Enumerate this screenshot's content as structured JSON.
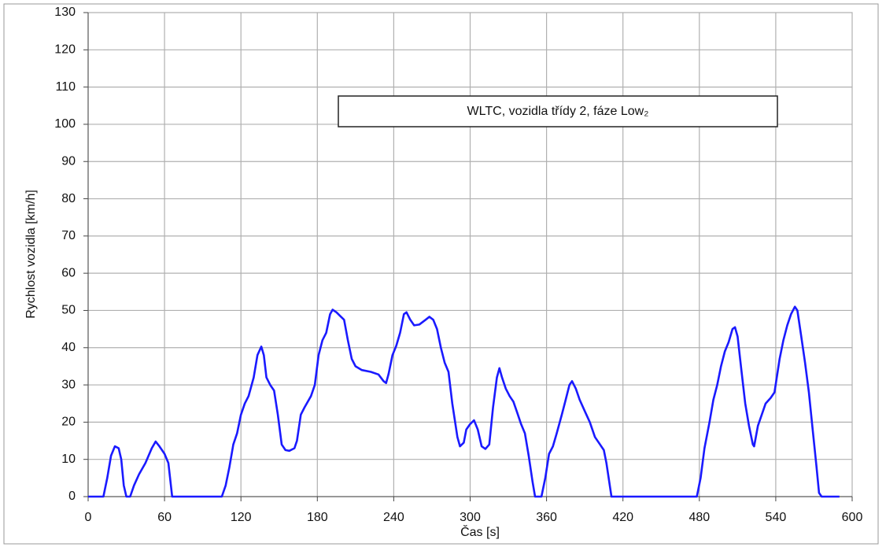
{
  "chart_data": {
    "type": "line",
    "annotation": "WLTC, vozidla třídy 2, fáze Low₂",
    "xlabel": "Čas [s]",
    "ylabel": "Rychlost vozidla [km/h]",
    "color": "#1a1aff",
    "grid": true,
    "xlim": [
      0,
      600
    ],
    "xticks": [
      0,
      60,
      120,
      180,
      240,
      300,
      360,
      420,
      480,
      540,
      600
    ],
    "ylim": [
      0,
      130
    ],
    "yticks": [
      0,
      10,
      20,
      30,
      40,
      50,
      60,
      70,
      80,
      90,
      100,
      110,
      120,
      130
    ],
    "x": [
      0,
      12,
      15,
      18,
      21,
      24,
      26,
      28,
      30,
      33,
      36,
      40,
      45,
      50,
      53,
      56,
      60,
      63,
      66,
      68,
      105,
      108,
      111,
      114,
      117,
      120,
      123,
      126,
      130,
      133,
      136,
      138,
      140,
      143,
      146,
      149,
      152,
      155,
      158,
      162,
      164,
      167,
      170,
      175,
      178,
      181,
      184,
      187,
      190,
      192,
      195,
      198,
      201,
      204,
      207,
      210,
      215,
      222,
      228,
      232,
      234,
      236,
      239,
      242,
      245,
      248,
      250,
      253,
      256,
      260,
      265,
      268,
      271,
      274,
      277,
      280,
      283,
      286,
      290,
      292,
      295,
      297,
      300,
      303,
      306,
      309,
      312,
      315,
      318,
      321,
      323,
      325,
      328,
      331,
      334,
      337,
      340,
      343,
      346,
      349,
      351,
      356,
      359,
      362,
      365,
      368,
      372,
      375,
      378,
      380,
      383,
      386,
      390,
      394,
      398,
      402,
      405,
      407,
      411,
      415,
      478,
      481,
      484,
      488,
      491,
      494,
      497,
      500,
      503,
      506,
      508,
      510,
      513,
      516,
      519,
      522,
      523,
      526,
      529,
      532,
      536,
      539,
      543,
      546,
      549,
      552,
      555,
      557,
      560,
      563,
      566,
      569,
      572,
      574,
      576,
      590
    ],
    "values": [
      0,
      0,
      5,
      11,
      13.5,
      13,
      10,
      3,
      0,
      0,
      3,
      6,
      9,
      13,
      14.8,
      13.5,
      11.5,
      9,
      0,
      0,
      0,
      3,
      8,
      14,
      17,
      22,
      25,
      27,
      32,
      38,
      40.3,
      38,
      32,
      30,
      28.5,
      22,
      14,
      12.5,
      12.3,
      13,
      15,
      22,
      24,
      27,
      30,
      38,
      42,
      44,
      49,
      50.2,
      49.5,
      48.5,
      47.5,
      42,
      37,
      35,
      34,
      33.5,
      32.8,
      31,
      30.5,
      33,
      38,
      40.5,
      44,
      49,
      49.5,
      47.5,
      46,
      46.2,
      47.5,
      48.3,
      47.5,
      45,
      40,
      36,
      33.5,
      25,
      16,
      13.5,
      14.5,
      18,
      19.5,
      20.5,
      18,
      13.5,
      12.8,
      14,
      24,
      32,
      34.5,
      32,
      29,
      27,
      25.5,
      22.5,
      19.5,
      17,
      11,
      4,
      0,
      0,
      5,
      11.5,
      13.5,
      17,
      22,
      26,
      30,
      31,
      29,
      26,
      23,
      20,
      16,
      14,
      12.5,
      9,
      0,
      0,
      0,
      5,
      13,
      20,
      26,
      30,
      35,
      39,
      41.5,
      45,
      45.5,
      43,
      34,
      25,
      19,
      14,
      13.5,
      19,
      22,
      25,
      26.5,
      28,
      37,
      42,
      46,
      49,
      51,
      50,
      43,
      36,
      28,
      18,
      8,
      1,
      0,
      0
    ]
  }
}
